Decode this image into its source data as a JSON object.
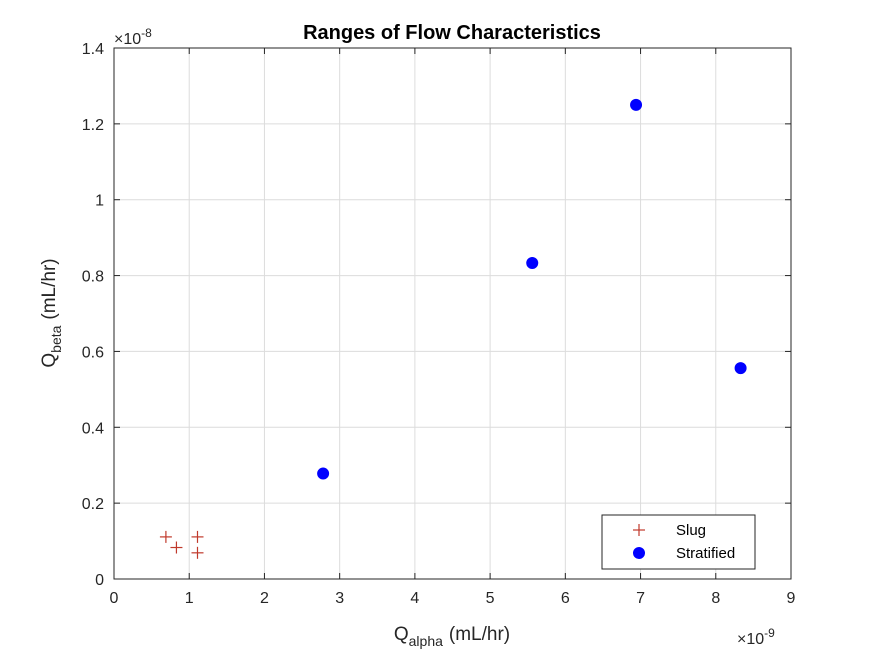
{
  "chart_data": {
    "type": "scatter",
    "title": "Ranges of Flow Characteristics",
    "xlabel": {
      "base": "Q",
      "sub": "alpha",
      "unit": "(mL/hr)"
    },
    "ylabel": {
      "base": "Q",
      "sub": "beta",
      "unit": "(mL/hr)"
    },
    "x_multiplier": {
      "base": "×10",
      "exp": "-9"
    },
    "y_multiplier": {
      "base": "×10",
      "exp": "-8"
    },
    "xlim": [
      0,
      9
    ],
    "ylim": [
      0,
      1.4
    ],
    "xticks": [
      0,
      1,
      2,
      3,
      4,
      5,
      6,
      7,
      8,
      9
    ],
    "yticks": [
      0,
      0.2,
      0.4,
      0.6,
      0.8,
      1,
      1.2,
      1.4
    ],
    "xtick_labels": [
      "0",
      "1",
      "2",
      "3",
      "4",
      "5",
      "6",
      "7",
      "8",
      "9"
    ],
    "ytick_labels": [
      "0",
      "0.2",
      "0.4",
      "0.6",
      "0.8",
      "1",
      "1.2",
      "1.4"
    ],
    "grid": true,
    "legend_position": "bottom-right",
    "series": [
      {
        "name": "Slug",
        "marker": "plus",
        "color": "#c0392b",
        "points": [
          {
            "x": 0.69,
            "y": 0.111
          },
          {
            "x": 0.83,
            "y": 0.083
          },
          {
            "x": 1.11,
            "y": 0.111
          },
          {
            "x": 1.11,
            "y": 0.069
          }
        ]
      },
      {
        "name": "Stratified",
        "marker": "circle",
        "color": "#0000ff",
        "points": [
          {
            "x": 2.78,
            "y": 0.278
          },
          {
            "x": 5.56,
            "y": 0.833
          },
          {
            "x": 6.94,
            "y": 1.25
          },
          {
            "x": 8.33,
            "y": 0.556
          }
        ]
      }
    ]
  }
}
